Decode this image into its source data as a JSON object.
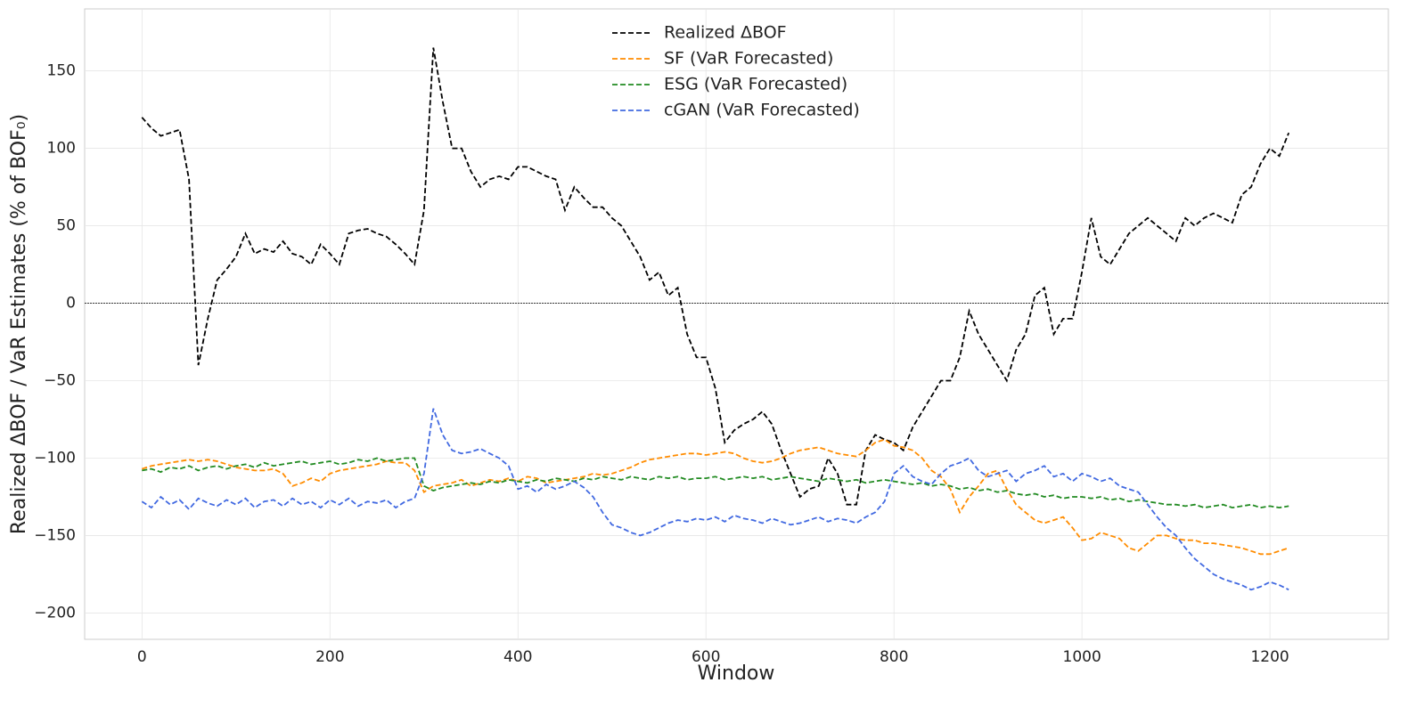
{
  "chart_data": {
    "type": "line",
    "xlabel": "Window",
    "ylabel": "Realized ΔBOF / VaR Estimates (% of BOF₀)",
    "xlim": [
      -61,
      1326
    ],
    "ylim": [
      -217,
      190
    ],
    "xticks": [
      0,
      200,
      400,
      600,
      800,
      1000,
      1200
    ],
    "yticks": [
      {
        "value": -200,
        "label": "−200"
      },
      {
        "value": -150,
        "label": "−150"
      },
      {
        "value": -100,
        "label": "−100"
      },
      {
        "value": -50,
        "label": "−50"
      },
      0,
      50,
      100,
      150
    ],
    "grid": true,
    "legend": "upper center",
    "reference_line": 0,
    "x": [
      0,
      10,
      20,
      30,
      40,
      50,
      60,
      70,
      80,
      90,
      100,
      110,
      120,
      130,
      140,
      150,
      160,
      170,
      180,
      190,
      200,
      210,
      220,
      230,
      240,
      250,
      260,
      270,
      280,
      290,
      300,
      310,
      320,
      330,
      340,
      350,
      360,
      370,
      380,
      390,
      400,
      410,
      420,
      430,
      440,
      450,
      460,
      470,
      480,
      490,
      500,
      510,
      520,
      530,
      540,
      550,
      560,
      570,
      580,
      590,
      600,
      610,
      620,
      630,
      640,
      650,
      660,
      670,
      680,
      690,
      700,
      710,
      720,
      730,
      740,
      750,
      760,
      770,
      780,
      790,
      800,
      810,
      820,
      830,
      840,
      850,
      860,
      870,
      880,
      890,
      900,
      910,
      920,
      930,
      940,
      950,
      960,
      970,
      980,
      990,
      1000,
      1010,
      1020,
      1030,
      1040,
      1050,
      1060,
      1070,
      1080,
      1090,
      1100,
      1110,
      1120,
      1130,
      1140,
      1150,
      1160,
      1170,
      1180,
      1190,
      1200,
      1210,
      1220
    ],
    "series": [
      {
        "name": "Realized ΔBOF",
        "color": "#000000",
        "values": [
          120,
          113,
          108,
          110,
          112,
          80,
          -40,
          -10,
          15,
          22,
          30,
          45,
          32,
          35,
          33,
          40,
          32,
          30,
          25,
          38,
          32,
          25,
          45,
          47,
          48,
          45,
          43,
          38,
          32,
          25,
          60,
          165,
          130,
          100,
          100,
          85,
          75,
          80,
          82,
          80,
          88,
          88,
          85,
          82,
          80,
          60,
          75,
          68,
          62,
          62,
          55,
          50,
          40,
          30,
          15,
          20,
          5,
          10,
          -20,
          -35,
          -35,
          -55,
          -90,
          -82,
          -78,
          -75,
          -70,
          -78,
          -95,
          -110,
          -125,
          -120,
          -118,
          -100,
          -110,
          -130,
          -130,
          -95,
          -85,
          -88,
          -90,
          -95,
          -80,
          -70,
          -60,
          -50,
          -50,
          -35,
          -5,
          -20,
          -30,
          -40,
          -50,
          -30,
          -20,
          5,
          10,
          -20,
          -10,
          -10,
          20,
          55,
          30,
          25,
          35,
          45,
          50,
          55,
          50,
          45,
          40,
          55,
          50,
          55,
          58,
          55,
          52,
          70,
          75,
          90,
          100,
          95,
          110
        ]
      },
      {
        "name": "SF (VaR Forecasted)",
        "color": "#ff8c00",
        "values": [
          -107,
          -105,
          -104,
          -103,
          -102,
          -101,
          -102,
          -101,
          -102,
          -104,
          -106,
          -107,
          -108,
          -108,
          -107,
          -110,
          -118,
          -116,
          -113,
          -115,
          -110,
          -108,
          -107,
          -106,
          -105,
          -104,
          -102,
          -103,
          -103,
          -108,
          -122,
          -118,
          -117,
          -116,
          -114,
          -118,
          -116,
          -114,
          -115,
          -113,
          -115,
          -112,
          -113,
          -116,
          -115,
          -114,
          -113,
          -112,
          -110,
          -111,
          -110,
          -108,
          -106,
          -103,
          -101,
          -100,
          -99,
          -98,
          -97,
          -97,
          -98,
          -97,
          -96,
          -97,
          -100,
          -102,
          -103,
          -102,
          -100,
          -97,
          -95,
          -94,
          -93,
          -95,
          -97,
          -98,
          -99,
          -95,
          -90,
          -88,
          -92,
          -93,
          -95,
          -100,
          -108,
          -112,
          -120,
          -135,
          -125,
          -118,
          -110,
          -108,
          -120,
          -130,
          -135,
          -140,
          -142,
          -140,
          -138,
          -145,
          -153,
          -152,
          -148,
          -150,
          -152,
          -158,
          -160,
          -155,
          -150,
          -150,
          -152,
          -153,
          -153,
          -155,
          -155,
          -156,
          -157,
          -158,
          -160,
          -162,
          -162,
          -160,
          -158
        ]
      },
      {
        "name": "ESG (VaR Forecasted)",
        "color": "#228b22",
        "values": [
          -108,
          -107,
          -109,
          -106,
          -107,
          -105,
          -108,
          -106,
          -105,
          -107,
          -105,
          -104,
          -106,
          -103,
          -105,
          -104,
          -103,
          -102,
          -104,
          -103,
          -102,
          -104,
          -103,
          -101,
          -102,
          -100,
          -102,
          -101,
          -100,
          -100,
          -118,
          -121,
          -119,
          -118,
          -117,
          -116,
          -117,
          -115,
          -116,
          -114,
          -115,
          -116,
          -114,
          -115,
          -113,
          -114,
          -115,
          -113,
          -114,
          -112,
          -113,
          -114,
          -112,
          -113,
          -114,
          -112,
          -113,
          -112,
          -114,
          -113,
          -113,
          -112,
          -114,
          -113,
          -112,
          -113,
          -112,
          -114,
          -113,
          -112,
          -113,
          -114,
          -115,
          -113,
          -114,
          -115,
          -114,
          -116,
          -115,
          -114,
          -115,
          -116,
          -117,
          -116,
          -118,
          -117,
          -118,
          -120,
          -119,
          -121,
          -120,
          -122,
          -121,
          -123,
          -124,
          -123,
          -125,
          -124,
          -126,
          -125,
          -125,
          -126,
          -125,
          -127,
          -126,
          -128,
          -127,
          -128,
          -129,
          -130,
          -130,
          -131,
          -130,
          -132,
          -131,
          -130,
          -132,
          -131,
          -130,
          -132,
          -131,
          -132,
          -131
        ]
      },
      {
        "name": "cGAN (VaR Forecasted)",
        "color": "#4169e1",
        "values": [
          -128,
          -132,
          -125,
          -130,
          -127,
          -133,
          -126,
          -129,
          -131,
          -127,
          -130,
          -126,
          -132,
          -128,
          -127,
          -131,
          -126,
          -130,
          -128,
          -132,
          -127,
          -130,
          -126,
          -131,
          -128,
          -129,
          -127,
          -132,
          -128,
          -126,
          -110,
          -68,
          -85,
          -95,
          -97,
          -96,
          -94,
          -97,
          -100,
          -105,
          -120,
          -118,
          -122,
          -117,
          -120,
          -118,
          -115,
          -119,
          -125,
          -135,
          -143,
          -145,
          -148,
          -150,
          -148,
          -145,
          -142,
          -140,
          -141,
          -139,
          -140,
          -138,
          -141,
          -137,
          -139,
          -140,
          -142,
          -139,
          -141,
          -143,
          -142,
          -140,
          -138,
          -141,
          -139,
          -140,
          -142,
          -138,
          -135,
          -128,
          -110,
          -105,
          -112,
          -115,
          -117,
          -110,
          -105,
          -103,
          -100,
          -108,
          -112,
          -110,
          -108,
          -115,
          -110,
          -108,
          -105,
          -112,
          -110,
          -115,
          -110,
          -112,
          -115,
          -113,
          -118,
          -120,
          -122,
          -130,
          -138,
          -145,
          -150,
          -158,
          -165,
          -170,
          -175,
          -178,
          -180,
          -182,
          -185,
          -183,
          -180,
          -182,
          -185
        ]
      }
    ]
  }
}
